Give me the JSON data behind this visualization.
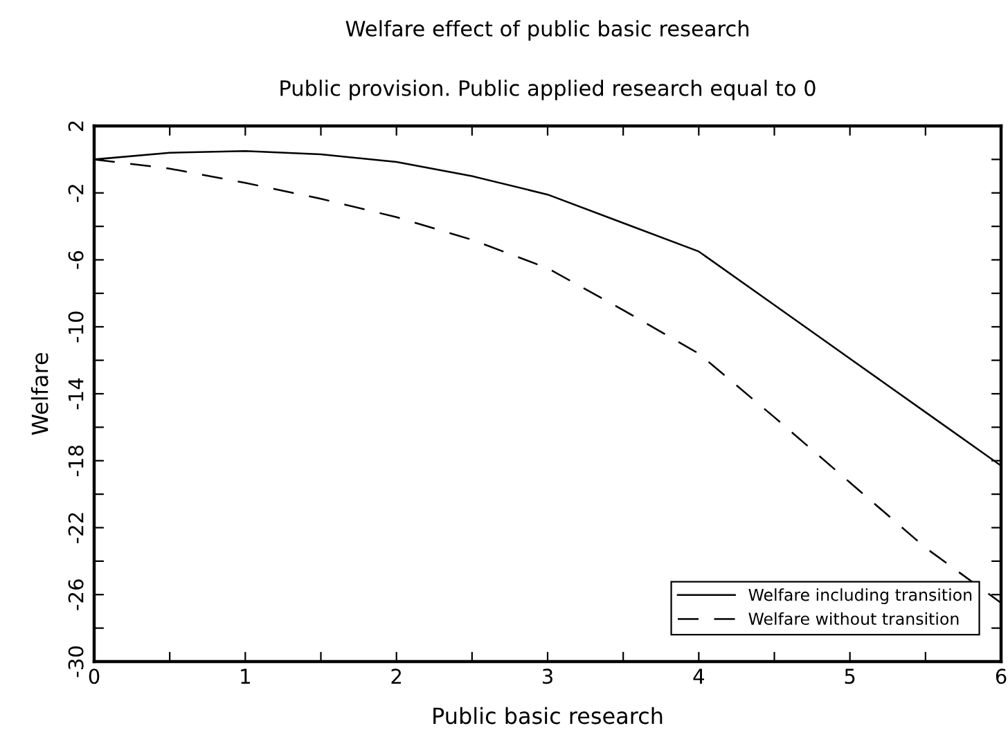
{
  "chart_data": {
    "type": "line",
    "title": "Welfare effect of public basic research",
    "subtitle": "Public provision. Public applied research equal to 0",
    "xlabel": "Public basic research",
    "ylabel": "Welfare",
    "x": [
      0,
      0.5,
      1,
      1.5,
      2,
      2.5,
      3,
      3.5,
      4,
      4.5,
      5,
      5.5,
      6
    ],
    "series": [
      {
        "name": "Welfare including transition",
        "color": "#000000",
        "line_style": "solid",
        "values": [
          0,
          0.4,
          0.5,
          0.3,
          -0.15,
          -1.0,
          -2.1,
          -3.8,
          -5.5,
          -8.7,
          -11.9,
          -15.1,
          -18.3
        ]
      },
      {
        "name": "Welfare without transition",
        "color": "#000000",
        "line_style": "dashed",
        "values": [
          0,
          -0.55,
          -1.4,
          -2.35,
          -3.45,
          -4.8,
          -6.5,
          -9.0,
          -11.6,
          -15.4,
          -19.3,
          -23.2,
          -26.5
        ]
      }
    ],
    "xlim": [
      0,
      6
    ],
    "ylim": [
      -30,
      2
    ],
    "xticks": [
      0,
      {
        "value": 0.5,
        "label": null
      },
      1,
      {
        "value": 1.5,
        "label": null
      },
      2,
      {
        "value": 2.5,
        "label": null
      },
      3,
      {
        "value": 3.5,
        "label": null
      },
      4,
      {
        "value": 4.5,
        "label": null
      },
      5,
      {
        "value": 5.5,
        "label": null
      },
      6
    ],
    "yticks": [
      -30,
      {
        "value": -28,
        "label": null
      },
      -26,
      {
        "value": -24,
        "label": null
      },
      -22,
      {
        "value": -20,
        "label": null
      },
      -18,
      {
        "value": -16,
        "label": null
      },
      -14,
      {
        "value": -12,
        "label": null
      },
      -10,
      {
        "value": -8,
        "label": null
      },
      -6,
      {
        "value": -4,
        "label": null
      },
      -2,
      {
        "value": 0,
        "label": null
      },
      2
    ],
    "grid": false,
    "legend": "bottom right",
    "marker": "none"
  }
}
